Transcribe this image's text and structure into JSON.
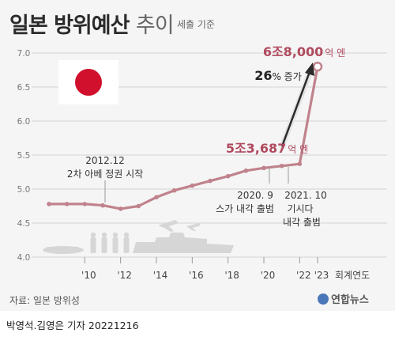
{
  "header": {
    "title_bold": "일본 방위예산",
    "title_light": "추이",
    "subtitle": "세출 기준"
  },
  "footer": {
    "source": "자료: 일본 방위성",
    "logo": "연합뉴스",
    "byline": "박영석.김영은 기자  20221216"
  },
  "colors": {
    "line": "#c0828c",
    "callout": "#b04a5e",
    "flag_red": "#d0102c",
    "arrow": "#2b2b2b"
  },
  "chart_data": {
    "type": "line",
    "x": [
      2008,
      2009,
      2010,
      2011,
      2012,
      2013,
      2014,
      2015,
      2016,
      2017,
      2018,
      2019,
      2020,
      2021,
      2022,
      2023
    ],
    "values": [
      4.78,
      4.78,
      4.78,
      4.76,
      4.71,
      4.75,
      4.88,
      4.98,
      5.05,
      5.12,
      5.19,
      5.27,
      5.31,
      5.34,
      5.37,
      6.8
    ],
    "ylim": [
      4.0,
      7.0
    ],
    "yticks": [
      "4.0",
      "4.5",
      "5.0",
      "5.5",
      "6.0",
      "6.5",
      "7.0"
    ],
    "xtick_labels": [
      {
        "x": 2010,
        "label": "'10"
      },
      {
        "x": 2012,
        "label": "'12"
      },
      {
        "x": 2014,
        "label": "'14"
      },
      {
        "x": 2016,
        "label": "'16"
      },
      {
        "x": 2018,
        "label": "'18"
      },
      {
        "x": 2020,
        "label": "'20"
      },
      {
        "x": 2022,
        "label": "'22"
      },
      {
        "x": 2023,
        "label": "'23"
      }
    ],
    "xlabel": "회계연도",
    "grid": true,
    "annotations": {
      "peak_num": "6조8,000",
      "peak_unit": "억 엔",
      "mid_num": "5조3,687",
      "mid_unit": "억 엔",
      "growth_num": "26",
      "growth_unit": "% 증가",
      "event1_line1": "2012.12",
      "event1_line2": "2차 아베 정권 시작",
      "event2_line1": "2020. 9",
      "event2_line2": "스가 내각 출범",
      "event3_line1": "2021. 10",
      "event3_line2": "기시다",
      "event3_line3": "내각 출범"
    }
  }
}
